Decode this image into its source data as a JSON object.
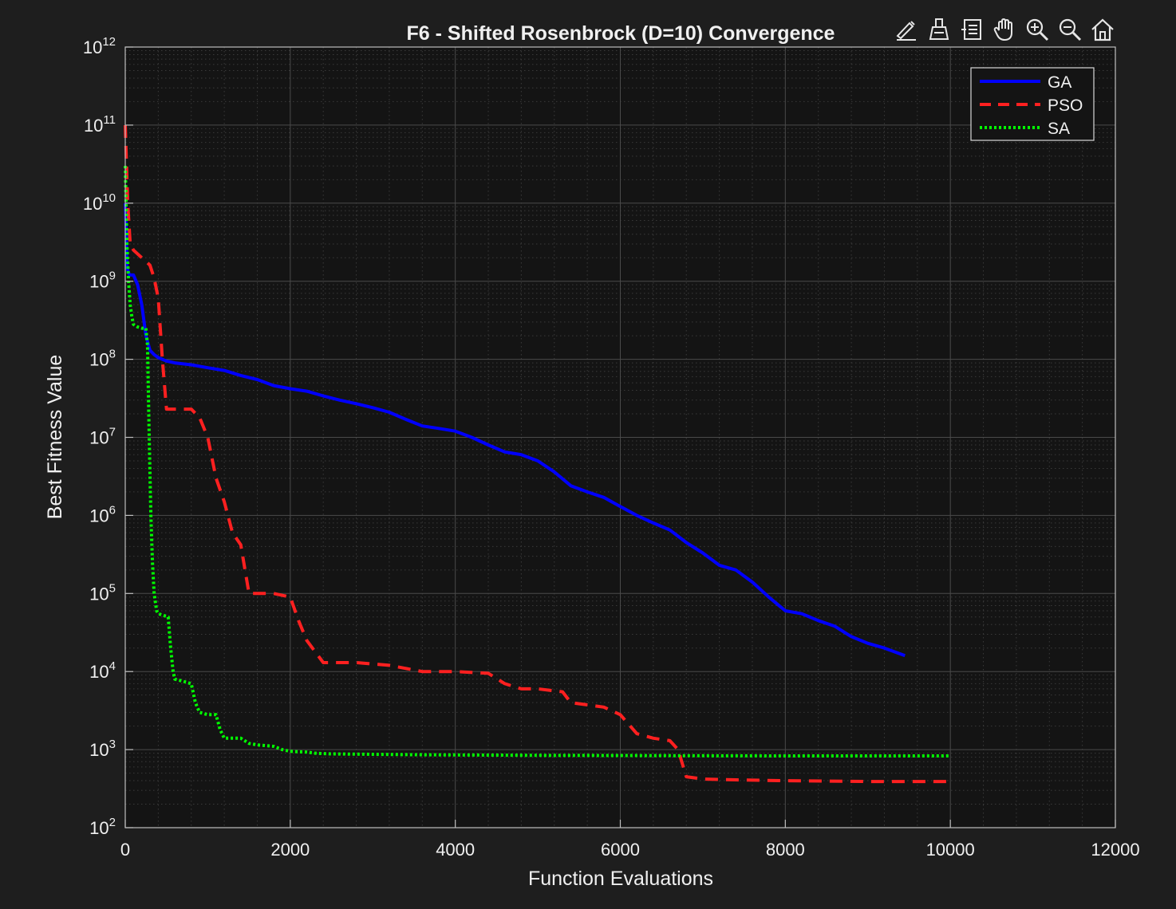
{
  "chart_data": {
    "type": "line",
    "title": "F6 - Shifted Rosenbrock (D=10) Convergence",
    "xlabel": "Function Evaluations",
    "ylabel": "Best Fitness Value",
    "xlim": [
      0,
      12000
    ],
    "ylim": [
      100,
      1000000000000
    ],
    "xscale": "linear",
    "yscale": "log",
    "x_ticks": [
      0,
      2000,
      4000,
      6000,
      8000,
      10000,
      12000
    ],
    "x_tick_labels": [
      "0",
      "2000",
      "4000",
      "6000",
      "8000",
      "10000",
      "12000"
    ],
    "y_ticks": [
      2,
      3,
      4,
      5,
      6,
      7,
      8,
      9,
      10,
      11,
      12
    ],
    "y_tick_base": "10",
    "grid": true,
    "minor_grid": true,
    "legend_position": "top-right",
    "background": "#141414",
    "series": [
      {
        "name": "GA",
        "color": "#0000ff",
        "style": "solid",
        "x": [
          0,
          10,
          20,
          50,
          100,
          150,
          200,
          250,
          300,
          350,
          400,
          500,
          600,
          800,
          1000,
          1200,
          1400,
          1600,
          1800,
          2000,
          2200,
          2400,
          2600,
          2800,
          3000,
          3200,
          3400,
          3600,
          3800,
          4000,
          4200,
          4400,
          4600,
          4800,
          5000,
          5200,
          5400,
          5600,
          5800,
          6000,
          6200,
          6400,
          6600,
          6800,
          7000,
          7200,
          7400,
          7600,
          7800,
          8000,
          8200,
          8400,
          8600,
          8800,
          9000,
          9200,
          9450
        ],
        "y": [
          10000000000,
          5000000000,
          1500000000,
          1200000000,
          1200000000,
          900000000,
          500000000,
          200000000,
          130000000,
          115000000,
          105000000,
          95000000,
          90000000,
          85000000,
          78000000,
          72000000,
          62000000,
          55000000,
          46000000,
          42000000,
          39000000,
          34000000,
          30000000,
          27000000,
          24000000,
          21000000,
          17000000,
          14000000,
          13000000,
          12000000,
          10000000,
          8000000,
          6500000,
          6000000,
          5000000,
          3600000,
          2400000,
          2000000,
          1700000,
          1300000,
          1000000,
          800000,
          650000,
          450000,
          330000,
          230000,
          200000,
          140000,
          90000,
          60000,
          55000,
          45000,
          38000,
          28000,
          23000,
          20000,
          16000
        ]
      },
      {
        "name": "PSO",
        "color": "#ff2020",
        "style": "dashed",
        "x": [
          0,
          30,
          60,
          100,
          200,
          250,
          300,
          350,
          400,
          450,
          500,
          550,
          600,
          800,
          900,
          1000,
          1100,
          1200,
          1300,
          1400,
          1500,
          1600,
          1800,
          2000,
          2100,
          2200,
          2400,
          2800,
          3200,
          3600,
          4000,
          4400,
          4600,
          4800,
          5000,
          5300,
          5400,
          5800,
          6000,
          6200,
          6400,
          6600,
          6700,
          6800,
          7000,
          7400,
          8000,
          9000,
          10000
        ],
        "y": [
          100000000000,
          10000000000,
          3000000000,
          2500000000,
          2000000000,
          1800000000,
          1600000000,
          1100000000,
          600000000,
          100000000,
          23000000,
          23000000,
          23000000,
          23000000,
          18000000,
          10000000,
          3000000,
          1500000,
          600000,
          420000,
          100000,
          100000,
          100000,
          90000,
          45000,
          25000,
          13000,
          13000,
          12000,
          10000,
          10000,
          9500,
          7000,
          6000,
          6000,
          5500,
          4000,
          3500,
          2800,
          1600,
          1400,
          1300,
          1000,
          450,
          420,
          410,
          400,
          390,
          390
        ]
      },
      {
        "name": "SA",
        "color": "#00ff00",
        "style": "dotted",
        "x": [
          0,
          10,
          20,
          40,
          60,
          80,
          100,
          150,
          200,
          250,
          270,
          290,
          310,
          330,
          350,
          380,
          400,
          450,
          520,
          550,
          580,
          600,
          700,
          800,
          850,
          900,
          1000,
          1100,
          1150,
          1200,
          1400,
          1500,
          1600,
          1800,
          1900,
          2000,
          2200,
          2300,
          2500,
          3000,
          3500,
          4000,
          4500,
          5000,
          6000,
          7000,
          8000,
          9000,
          10000
        ],
        "y": [
          30000000000,
          10000000000,
          3000000000,
          1000000000,
          500000000,
          350000000,
          280000000,
          260000000,
          250000000,
          250000000,
          150000000,
          10000000,
          1000000,
          250000,
          100000,
          60000,
          55000,
          53000,
          50000,
          20000,
          10000,
          8000,
          7500,
          7000,
          4000,
          3000,
          2800,
          2800,
          1800,
          1400,
          1400,
          1200,
          1150,
          1100,
          1000,
          950,
          930,
          900,
          880,
          870,
          860,
          855,
          850,
          845,
          840,
          835,
          830,
          830,
          830
        ]
      }
    ]
  },
  "toolbar": {
    "icons": [
      "edit-icon",
      "brush-icon",
      "datatip-icon",
      "pan-icon",
      "zoom-in-icon",
      "zoom-out-icon",
      "home-icon"
    ]
  }
}
